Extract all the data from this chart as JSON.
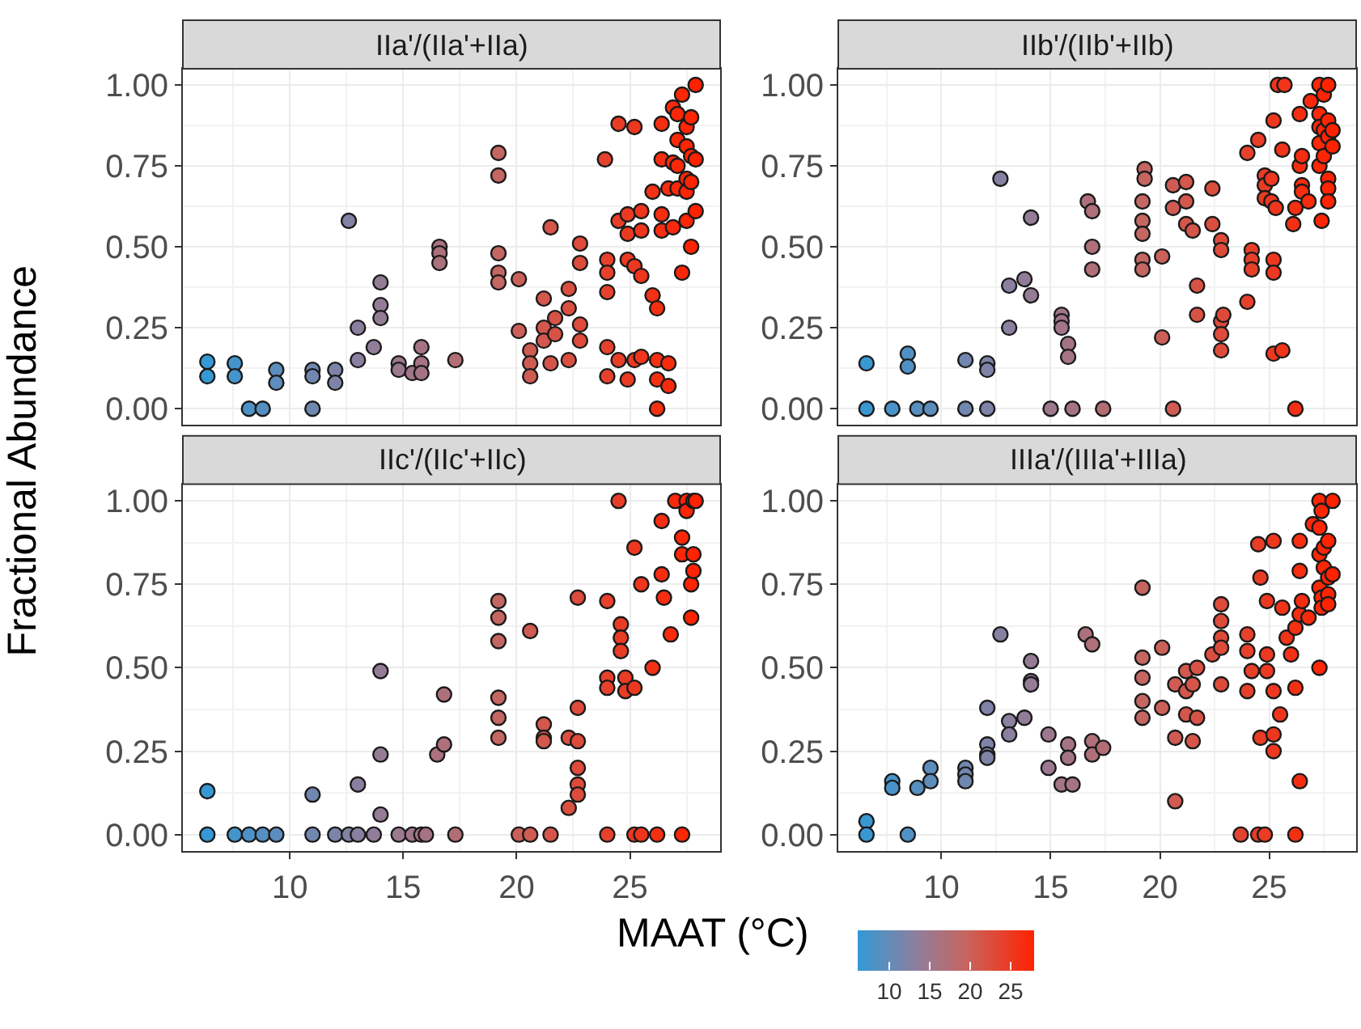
{
  "chart_data": [
    {
      "type": "scatter",
      "title": "IIa'/(IIa'+IIa)",
      "ylabel": "Fractional Abundance",
      "marker": "circle",
      "grid": true,
      "tick_labels": "y",
      "x": [
        6.36,
        6.36,
        7.57,
        7.57,
        8.2,
        8.8,
        9.4,
        9.4,
        11.0,
        11.0,
        11.0,
        12.0,
        12.0,
        12.6,
        13.0,
        13.0,
        13.7,
        14.0,
        14.0,
        14.0,
        14.8,
        14.8,
        15.4,
        15.8,
        15.8,
        15.8,
        16.6,
        16.6,
        16.6,
        17.3,
        19.2,
        19.2,
        19.2,
        19.2,
        19.2,
        20.1,
        20.1,
        20.6,
        20.6,
        20.6,
        21.2,
        21.2,
        21.2,
        21.5,
        21.5,
        21.7,
        21.7,
        22.3,
        22.3,
        22.3,
        22.8,
        22.8,
        22.8,
        22.8,
        23.9,
        24.0,
        24.0,
        24.0,
        24.0,
        24.0,
        24.5,
        24.5,
        24.5,
        24.9,
        24.9,
        24.9,
        24.9,
        25.2,
        25.2,
        25.2,
        25.5,
        25.5,
        25.5,
        25.5,
        26.0,
        26.0,
        26.2,
        26.2,
        26.2,
        26.2,
        26.4,
        26.4,
        26.4,
        26.4,
        26.7,
        26.7,
        26.7,
        26.9,
        26.9,
        26.9,
        27.1,
        27.1,
        27.1,
        27.1,
        27.3,
        27.3,
        27.5,
        27.5,
        27.5,
        27.5,
        27.5,
        27.7,
        27.7,
        27.7,
        27.7,
        27.9,
        27.9,
        27.9
      ],
      "values": [
        0.145,
        0.1,
        0.14,
        0.1,
        0,
        0,
        0.12,
        0.08,
        0.12,
        0.1,
        0,
        0.12,
        0.08,
        0.58,
        0.25,
        0.15,
        0.19,
        0.39,
        0.32,
        0.28,
        0.14,
        0.12,
        0.11,
        0.19,
        0.14,
        0.11,
        0.5,
        0.48,
        0.45,
        0.15,
        0.79,
        0.72,
        0.48,
        0.42,
        0.39,
        0.4,
        0.24,
        0.18,
        0.14,
        0.1,
        0.34,
        0.25,
        0.21,
        0.56,
        0.14,
        0.28,
        0.23,
        0.37,
        0.31,
        0.15,
        0.51,
        0.45,
        0.26,
        0.21,
        0.77,
        0.46,
        0.42,
        0.36,
        0.19,
        0.1,
        0.88,
        0.58,
        0.15,
        0.6,
        0.54,
        0.46,
        0.09,
        0.87,
        0.44,
        0.15,
        0.61,
        0.55,
        0.41,
        0.16,
        0.67,
        0.35,
        0.31,
        0.15,
        0.09,
        0,
        0.88,
        0.77,
        0.6,
        0.55,
        0.68,
        0.14,
        0.07,
        0.93,
        0.76,
        0.56,
        0.91,
        0.83,
        0.75,
        0.68,
        0.97,
        0.42,
        0.87,
        0.81,
        0.71,
        0.67,
        0.58,
        0.9,
        0.78,
        0.7,
        0.5,
        1.0,
        0.77,
        0.61
      ],
      "xlim": [
        5.28,
        28.98
      ],
      "xticks": [
        10,
        15,
        20,
        25
      ],
      "ylim": [
        -0.05,
        1.05
      ],
      "yticks": [
        {
          "value": 0,
          "label": "0.00"
        },
        {
          "value": 0.25,
          "label": "0.25"
        },
        {
          "value": 0.5,
          "label": "0.50"
        },
        {
          "value": 0.75,
          "label": "0.75"
        },
        {
          "value": 1,
          "label": "1.00"
        }
      ]
    },
    {
      "type": "scatter",
      "title": "IIb'/(IIb'+IIb)",
      "marker": "circle",
      "grid": true,
      "tick_labels": "y",
      "x": [
        6.57,
        6.57,
        7.75,
        8.46,
        8.46,
        8.9,
        9.5,
        11.1,
        11.1,
        12.1,
        12.1,
        12.1,
        12.7,
        13.1,
        13.1,
        13.8,
        14.1,
        14.1,
        15.0,
        15.5,
        15.5,
        15.5,
        15.8,
        15.8,
        16.0,
        16.7,
        16.9,
        16.9,
        16.9,
        17.4,
        19.2,
        19.2,
        19.2,
        19.2,
        19.2,
        19.3,
        19.3,
        20.1,
        20.1,
        20.6,
        20.6,
        20.6,
        21.2,
        21.2,
        21.2,
        21.5,
        21.7,
        21.7,
        22.4,
        22.4,
        22.8,
        22.8,
        22.8,
        22.8,
        22.8,
        22.9,
        24.0,
        24.0,
        24.2,
        24.2,
        24.2,
        24.5,
        24.8,
        24.8,
        24.8,
        25.1,
        25.1,
        25.2,
        25.2,
        25.2,
        25.2,
        25.3,
        25.4,
        25.6,
        25.6,
        25.7,
        26.1,
        26.2,
        26.2,
        26.4,
        26.4,
        26.5,
        26.5,
        26.5,
        26.8,
        26.9,
        27.3,
        27.3,
        27.3,
        27.3,
        27.3,
        27.4,
        27.5,
        27.5,
        27.5,
        27.7,
        27.7,
        27.7,
        27.7,
        27.7,
        27.7,
        27.9,
        27.9
      ],
      "values": [
        0.14,
        0,
        0,
        0.17,
        0.13,
        0,
        0,
        0.15,
        0,
        0.14,
        0.12,
        0,
        0.71,
        0.38,
        0.25,
        0.4,
        0.59,
        0.35,
        0,
        0.29,
        0.27,
        0.25,
        0.2,
        0.16,
        0,
        0.64,
        0.61,
        0.5,
        0.43,
        0,
        0.64,
        0.58,
        0.54,
        0.46,
        0.43,
        0.74,
        0.71,
        0.47,
        0.22,
        0.69,
        0.62,
        0,
        0.7,
        0.64,
        0.57,
        0.55,
        0.38,
        0.29,
        0.68,
        0.57,
        0.52,
        0.49,
        0.27,
        0.23,
        0.18,
        0.29,
        0.79,
        0.33,
        0.49,
        0.46,
        0.43,
        0.83,
        0.72,
        0.69,
        0.65,
        0.71,
        0.64,
        0.89,
        0.46,
        0.42,
        0.17,
        0.62,
        1.0,
        0.18,
        0.8,
        1.0,
        0.57,
        0.62,
        0,
        0.91,
        0.75,
        0.78,
        0.69,
        0.67,
        0.64,
        0.95,
        1.0,
        0.91,
        0.87,
        0.82,
        0.75,
        0.58,
        0.97,
        0.86,
        0.78,
        1.0,
        0.89,
        0.84,
        0.71,
        0.68,
        0.64,
        0.86,
        0.81
      ],
      "xlim": [
        5.28,
        28.98
      ],
      "xticks": [
        10,
        15,
        20,
        25
      ],
      "ylim": [
        -0.05,
        1.05
      ],
      "yticks": [
        {
          "value": 0,
          "label": "0.00"
        },
        {
          "value": 0.25,
          "label": "0.25"
        },
        {
          "value": 0.5,
          "label": "0.50"
        },
        {
          "value": 0.75,
          "label": "0.75"
        },
        {
          "value": 1,
          "label": "1.00"
        }
      ]
    },
    {
      "type": "scatter",
      "title": "IIc'/(IIc'+IIc)",
      "marker": "circle",
      "grid": true,
      "x": [
        6.36,
        6.36,
        7.57,
        8.2,
        8.8,
        9.4,
        11.0,
        11.0,
        12.0,
        12.6,
        13.0,
        13.0,
        13.7,
        14.0,
        14.0,
        14.0,
        14.8,
        15.4,
        15.8,
        16.0,
        16.5,
        16.8,
        16.8,
        17.3,
        19.2,
        19.2,
        19.2,
        19.2,
        19.2,
        19.2,
        20.1,
        20.6,
        20.6,
        21.2,
        21.2,
        21.2,
        21.5,
        22.3,
        22.3,
        22.7,
        22.7,
        22.7,
        22.7,
        22.7,
        22.7,
        24.0,
        24.0,
        24.0,
        24.0,
        24.5,
        24.6,
        24.6,
        24.6,
        24.8,
        24.8,
        25.2,
        25.2,
        25.2,
        25.5,
        25.5,
        26.0,
        26.2,
        26.4,
        26.4,
        26.5,
        26.8,
        27.0,
        27.3,
        27.3,
        27.3,
        27.5,
        27.5,
        27.7,
        27.7,
        27.8,
        27.8,
        27.8,
        27.9
      ],
      "values": [
        0.13,
        0,
        0,
        0,
        0,
        0,
        0.12,
        0,
        0,
        0,
        0.15,
        0,
        0,
        0.49,
        0.24,
        0.06,
        0,
        0,
        0,
        0,
        0.24,
        0.42,
        0.27,
        0,
        0.7,
        0.65,
        0.58,
        0.41,
        0.35,
        0.29,
        0,
        0.61,
        0,
        0.33,
        0.29,
        0.28,
        0,
        0.29,
        0.08,
        0.71,
        0.38,
        0.28,
        0.2,
        0.15,
        0.12,
        0.7,
        0.47,
        0.44,
        0,
        1.0,
        0.63,
        0.59,
        0.55,
        0.47,
        0.43,
        0.86,
        0.44,
        0,
        0.75,
        0,
        0.5,
        0,
        0.94,
        0.78,
        0.71,
        0.6,
        1.0,
        0.89,
        0.84,
        0,
        1.0,
        0.97,
        0.75,
        0.65,
        1.0,
        0.84,
        0.79,
        1.0
      ],
      "xlim": [
        5.28,
        28.98
      ],
      "xticks": [
        10,
        15,
        20,
        25
      ],
      "ylim": [
        -0.05,
        1.05
      ],
      "yticks": [
        {
          "value": 0,
          "label": "0.00"
        },
        {
          "value": 0.25,
          "label": "0.25"
        },
        {
          "value": 0.5,
          "label": "0.50"
        },
        {
          "value": 0.75,
          "label": "0.75"
        },
        {
          "value": 1,
          "label": "1.00"
        }
      ]
    },
    {
      "type": "scatter",
      "title": "IIIa'/(IIIa'+IIIa)",
      "marker": "circle",
      "grid": true,
      "clabel": "MAAT (°C)",
      "clim": [
        6.1,
        27.9
      ],
      "cticks": [
        10,
        15,
        20,
        25
      ],
      "x": [
        6.57,
        6.57,
        7.75,
        7.75,
        8.46,
        8.9,
        9.5,
        9.5,
        11.1,
        11.1,
        11.1,
        12.1,
        12.1,
        12.1,
        12.1,
        12.7,
        13.1,
        13.1,
        13.8,
        14.1,
        14.1,
        14.1,
        14.9,
        14.9,
        15.5,
        15.8,
        15.8,
        16.0,
        16.6,
        16.9,
        16.9,
        16.9,
        17.4,
        19.2,
        19.2,
        19.2,
        19.2,
        19.2,
        20.1,
        20.1,
        20.7,
        20.7,
        20.7,
        21.2,
        21.2,
        21.2,
        21.5,
        21.5,
        21.7,
        21.7,
        22.4,
        22.8,
        22.8,
        22.8,
        22.8,
        22.8,
        23.7,
        24.0,
        24.0,
        24.0,
        24.2,
        24.5,
        24.5,
        24.6,
        24.6,
        24.8,
        24.9,
        24.9,
        24.9,
        25.2,
        25.2,
        25.2,
        25.2,
        25.5,
        25.6,
        25.8,
        26.0,
        26.2,
        26.2,
        26.2,
        26.4,
        26.4,
        26.4,
        26.4,
        26.5,
        26.8,
        27.0,
        27.3,
        27.3,
        27.3,
        27.3,
        27.3,
        27.4,
        27.4,
        27.4,
        27.5,
        27.5,
        27.7,
        27.7,
        27.7,
        27.7,
        27.9,
        27.9
      ],
      "values": [
        0.04,
        0,
        0.16,
        0.14,
        0,
        0.14,
        0.2,
        0.16,
        0.2,
        0.18,
        0.16,
        0.38,
        0.27,
        0.24,
        0.23,
        0.6,
        0.34,
        0.3,
        0.35,
        0.52,
        0.46,
        0.45,
        0.3,
        0.2,
        0.15,
        0.27,
        0.23,
        0.15,
        0.6,
        0.57,
        0.28,
        0.24,
        0.26,
        0.74,
        0.53,
        0.47,
        0.4,
        0.35,
        0.56,
        0.38,
        0.45,
        0.29,
        0.1,
        0.49,
        0.43,
        0.36,
        0.45,
        0.28,
        0.5,
        0.35,
        0.54,
        0.69,
        0.64,
        0.59,
        0.56,
        0.45,
        0,
        0.6,
        0.55,
        0.43,
        0.49,
        0.87,
        0,
        0.77,
        0.29,
        0,
        0.7,
        0.54,
        0.49,
        0.88,
        0.43,
        0.3,
        0.25,
        0.36,
        0.68,
        0.59,
        0.54,
        0.62,
        0.44,
        0,
        0.88,
        0.79,
        0.66,
        0.16,
        0.7,
        0.65,
        0.93,
        1.0,
        0.92,
        0.84,
        0.74,
        0.5,
        0.97,
        0.71,
        0.68,
        0.86,
        0.8,
        0.88,
        0.77,
        0.72,
        0.69,
        1.0,
        0.78
      ],
      "cvalues": [
        6.57,
        6.57,
        7.75,
        7.75,
        8.46,
        8.9,
        9.5,
        9.5,
        11.1,
        11.1,
        11.1,
        12.1,
        12.1,
        12.1,
        12.1,
        12.7,
        13.1,
        13.1,
        13.8,
        14.1,
        14.1,
        14.1,
        14.9,
        14.9,
        15.5,
        15.8,
        15.8,
        16.0,
        16.6,
        16.9,
        16.9,
        16.9,
        17.4,
        19.2,
        19.2,
        19.2,
        19.2,
        19.2,
        20.1,
        20.1,
        20.7,
        20.7,
        20.7,
        21.2,
        21.2,
        21.2,
        21.5,
        21.5,
        21.7,
        21.7,
        22.4,
        22.8,
        22.8,
        22.8,
        22.8,
        22.8,
        23.7,
        24.0,
        24.0,
        24.0,
        24.2,
        24.5,
        24.5,
        24.6,
        24.6,
        24.8,
        24.9,
        24.9,
        24.9,
        25.2,
        25.2,
        25.2,
        25.2,
        25.5,
        25.6,
        25.8,
        26.0,
        26.2,
        26.2,
        26.2,
        26.4,
        26.4,
        26.4,
        26.4,
        26.5,
        26.8,
        27.0,
        27.3,
        27.3,
        27.3,
        27.3,
        27.3,
        27.4,
        27.4,
        27.4,
        27.5,
        27.5,
        27.7,
        27.7,
        27.7,
        27.7,
        27.9,
        27.9
      ],
      "xlim": [
        5.28,
        28.98
      ],
      "xticks": [
        10,
        15,
        20,
        25
      ],
      "ylim": [
        -0.05,
        1.05
      ],
      "yticks": [
        {
          "value": 0,
          "label": "0.00"
        },
        {
          "value": 0.25,
          "label": "0.25"
        },
        {
          "value": 0.5,
          "label": "0.50"
        },
        {
          "value": 0.75,
          "label": "0.75"
        },
        {
          "value": 1,
          "label": "1.00"
        }
      ]
    }
  ]
}
